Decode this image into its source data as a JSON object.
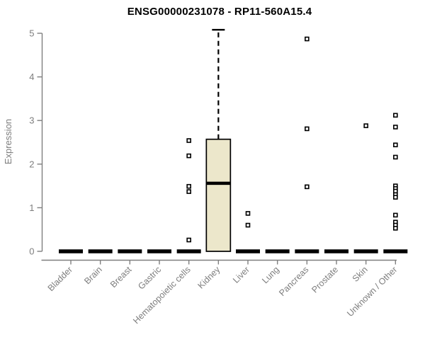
{
  "page": {
    "background": "#ffffff"
  },
  "chart_data": {
    "type": "boxplot",
    "title": "ENSG00000231078 - RP11-560A15.4",
    "xlabel": "",
    "ylabel": "Expression",
    "ylim": [
      0,
      5
    ],
    "yticks": [
      0,
      1,
      2,
      3,
      4,
      5
    ],
    "grid": false,
    "legend": null,
    "categories": [
      "Bladder",
      "Brain",
      "Breast",
      "Gastric",
      "Hematopoietic cells",
      "Kidney",
      "Liver",
      "Lung",
      "Pancreas",
      "Prostate",
      "Skin",
      "Unknown / Other"
    ],
    "boxes": [
      {
        "category": "Bladder",
        "whisker_low": 0,
        "q1": 0,
        "median": 0,
        "q3": 0,
        "whisker_high": 0,
        "outliers": []
      },
      {
        "category": "Brain",
        "whisker_low": 0,
        "q1": 0,
        "median": 0,
        "q3": 0,
        "whisker_high": 0,
        "outliers": []
      },
      {
        "category": "Breast",
        "whisker_low": 0,
        "q1": 0,
        "median": 0,
        "q3": 0,
        "whisker_high": 0,
        "outliers": []
      },
      {
        "category": "Gastric",
        "whisker_low": 0,
        "q1": 0,
        "median": 0,
        "q3": 0,
        "whisker_high": 0,
        "outliers": []
      },
      {
        "category": "Hematopoietic cells",
        "whisker_low": 0,
        "q1": 0,
        "median": 0,
        "q3": 0,
        "whisker_high": 0,
        "outliers": [
          2.54,
          2.19,
          1.49,
          1.37,
          0.26
        ]
      },
      {
        "category": "Kidney",
        "whisker_low": 0,
        "q1": 0,
        "median": 1.56,
        "q3": 2.57,
        "whisker_high": 5.08,
        "outliers": []
      },
      {
        "category": "Liver",
        "whisker_low": 0,
        "q1": 0,
        "median": 0,
        "q3": 0,
        "whisker_high": 0,
        "outliers": [
          0.87,
          0.6
        ]
      },
      {
        "category": "Lung",
        "whisker_low": 0,
        "q1": 0,
        "median": 0,
        "q3": 0,
        "whisker_high": 0,
        "outliers": []
      },
      {
        "category": "Pancreas",
        "whisker_low": 0,
        "q1": 0,
        "median": 0,
        "q3": 0,
        "whisker_high": 0,
        "outliers": [
          4.87,
          2.81,
          1.48
        ]
      },
      {
        "category": "Prostate",
        "whisker_low": 0,
        "q1": 0,
        "median": 0,
        "q3": 0,
        "whisker_high": 0,
        "outliers": []
      },
      {
        "category": "Skin",
        "whisker_low": 0,
        "q1": 0,
        "median": 0,
        "q3": 0,
        "whisker_high": 0,
        "outliers": [
          2.88
        ]
      },
      {
        "category": "Unknown / Other",
        "whisker_low": 0,
        "q1": 0,
        "median": 0,
        "q3": 0,
        "whisker_high": 0,
        "outliers": [
          3.12,
          2.85,
          2.44,
          2.16,
          1.5,
          1.44,
          1.38,
          1.3,
          1.24,
          0.83,
          0.67,
          0.6,
          0.53
        ]
      }
    ],
    "colors": {
      "box_fill": "#ECE7CB",
      "box_border": "#000000",
      "median": "#000000",
      "whisker": "#000000",
      "flat_bar": "#000000",
      "outlier_fill": "#ffffff",
      "outlier_border": "#000000",
      "axis": "#7f7f7f",
      "tick_label": "#7e7e7e",
      "title": "#000000"
    }
  }
}
